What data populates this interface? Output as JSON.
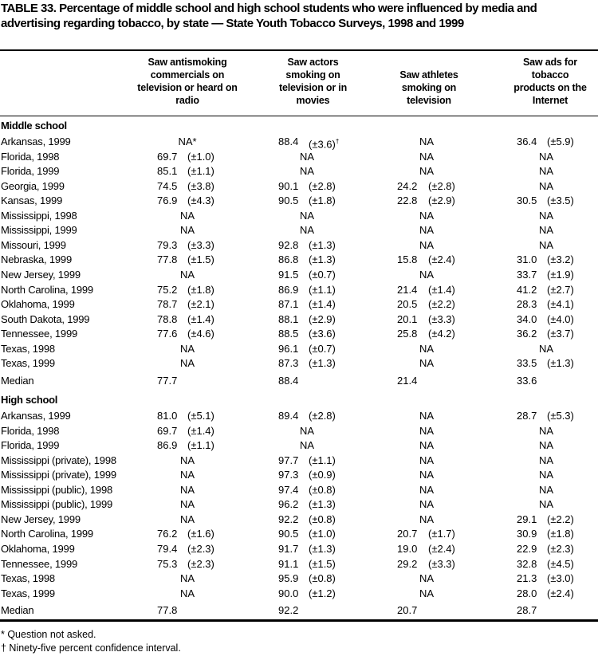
{
  "title": "TABLE 33. Percentage of middle school and high school students who were influenced by media and advertising regarding tobacco, by state — State Youth Tobacco Surveys, 1998 and 1999",
  "columns": [
    "Saw antismoking commercials on television or heard on radio",
    "Saw actors smoking on television or in movies",
    "Saw athletes smoking on television",
    "Saw ads for tobacco products on the Internet"
  ],
  "sections": [
    {
      "heading": "Middle school",
      "rows": [
        {
          "label": "Arkansas, 1999",
          "cells": [
            [
              "NA*"
            ],
            [
              "88.4",
              "(±3.6)",
              "†"
            ],
            [
              "NA"
            ],
            [
              "36.4",
              "(±5.9)"
            ]
          ]
        },
        {
          "label": "Florida, 1998",
          "cells": [
            [
              "69.7",
              "(±1.0)"
            ],
            [
              "NA"
            ],
            [
              "NA"
            ],
            [
              "NA"
            ]
          ]
        },
        {
          "label": "Florida, 1999",
          "cells": [
            [
              "85.1",
              "(±1.1)"
            ],
            [
              "NA"
            ],
            [
              "NA"
            ],
            [
              "NA"
            ]
          ]
        },
        {
          "label": "Georgia, 1999",
          "cells": [
            [
              "74.5",
              "(±3.8)"
            ],
            [
              "90.1",
              "(±2.8)"
            ],
            [
              "24.2",
              "(±2.8)"
            ],
            [
              "NA"
            ]
          ]
        },
        {
          "label": "Kansas, 1999",
          "cells": [
            [
              "76.9",
              "(±4.3)"
            ],
            [
              "90.5",
              "(±1.8)"
            ],
            [
              "22.8",
              "(±2.9)"
            ],
            [
              "30.5",
              "(±3.5)"
            ]
          ]
        },
        {
          "label": "Mississippi, 1998",
          "cells": [
            [
              "NA"
            ],
            [
              "NA"
            ],
            [
              "NA"
            ],
            [
              "NA"
            ]
          ]
        },
        {
          "label": "Mississippi, 1999",
          "cells": [
            [
              "NA"
            ],
            [
              "NA"
            ],
            [
              "NA"
            ],
            [
              "NA"
            ]
          ]
        },
        {
          "label": "Missouri, 1999",
          "cells": [
            [
              "79.3",
              "(±3.3)"
            ],
            [
              "92.8",
              "(±1.3)"
            ],
            [
              "NA"
            ],
            [
              "NA"
            ]
          ]
        },
        {
          "label": "Nebraska, 1999",
          "cells": [
            [
              "77.8",
              "(±1.5)"
            ],
            [
              "86.8",
              "(±1.3)"
            ],
            [
              "15.8",
              "(±2.4)"
            ],
            [
              "31.0",
              "(±3.2)"
            ]
          ]
        },
        {
          "label": "New Jersey, 1999",
          "cells": [
            [
              "NA"
            ],
            [
              "91.5",
              "(±0.7)"
            ],
            [
              "NA"
            ],
            [
              "33.7",
              "(±1.9)"
            ]
          ]
        },
        {
          "label": "North Carolina, 1999",
          "cells": [
            [
              "75.2",
              "(±1.8)"
            ],
            [
              "86.9",
              "(±1.1)"
            ],
            [
              "21.4",
              "(±1.4)"
            ],
            [
              "41.2",
              "(±2.7)"
            ]
          ]
        },
        {
          "label": "Oklahoma, 1999",
          "cells": [
            [
              "78.7",
              "(±2.1)"
            ],
            [
              "87.1",
              "(±1.4)"
            ],
            [
              "20.5",
              "(±2.2)"
            ],
            [
              "28.3",
              "(±4.1)"
            ]
          ]
        },
        {
          "label": "South Dakota, 1999",
          "cells": [
            [
              "78.8",
              "(±1.4)"
            ],
            [
              "88.1",
              "(±2.9)"
            ],
            [
              "20.1",
              "(±3.3)"
            ],
            [
              "34.0",
              "(±4.0)"
            ]
          ]
        },
        {
          "label": "Tennessee, 1999",
          "cells": [
            [
              "77.6",
              "(±4.6)"
            ],
            [
              "88.5",
              "(±3.6)"
            ],
            [
              "25.8",
              "(±4.2)"
            ],
            [
              "36.2",
              "(±3.7)"
            ]
          ]
        },
        {
          "label": "Texas, 1998",
          "cells": [
            [
              "NA"
            ],
            [
              "96.1",
              "(±0.7)"
            ],
            [
              "NA"
            ],
            [
              "NA"
            ]
          ]
        },
        {
          "label": "Texas, 1999",
          "cells": [
            [
              "NA"
            ],
            [
              "87.3",
              "(±1.3)"
            ],
            [
              "NA"
            ],
            [
              "33.5",
              "(±1.3)"
            ]
          ]
        },
        {
          "label": "Median",
          "median": true,
          "cells": [
            [
              "77.7"
            ],
            [
              "88.4"
            ],
            [
              "21.4"
            ],
            [
              "33.6"
            ]
          ]
        }
      ]
    },
    {
      "heading": "High school",
      "rows": [
        {
          "label": "Arkansas, 1999",
          "cells": [
            [
              "81.0",
              "(±5.1)"
            ],
            [
              "89.4",
              "(±2.8)"
            ],
            [
              "NA"
            ],
            [
              "28.7",
              "(±5.3)"
            ]
          ]
        },
        {
          "label": "Florida, 1998",
          "cells": [
            [
              "69.7",
              "(±1.4)"
            ],
            [
              "NA"
            ],
            [
              "NA"
            ],
            [
              "NA"
            ]
          ]
        },
        {
          "label": "Florida, 1999",
          "cells": [
            [
              "86.9",
              "(±1.1)"
            ],
            [
              "NA"
            ],
            [
              "NA"
            ],
            [
              "NA"
            ]
          ]
        },
        {
          "label": "Mississippi (private), 1998",
          "cells": [
            [
              "NA"
            ],
            [
              "97.7",
              "(±1.1)"
            ],
            [
              "NA"
            ],
            [
              "NA"
            ]
          ]
        },
        {
          "label": "Mississippi (private), 1999",
          "cells": [
            [
              "NA"
            ],
            [
              "97.3",
              "(±0.9)"
            ],
            [
              "NA"
            ],
            [
              "NA"
            ]
          ]
        },
        {
          "label": "Mississippi (public), 1998",
          "cells": [
            [
              "NA"
            ],
            [
              "97.4",
              "(±0.8)"
            ],
            [
              "NA"
            ],
            [
              "NA"
            ]
          ]
        },
        {
          "label": "Mississippi (public), 1999",
          "cells": [
            [
              "NA"
            ],
            [
              "96.2",
              "(±1.3)"
            ],
            [
              "NA"
            ],
            [
              "NA"
            ]
          ]
        },
        {
          "label": "New Jersey, 1999",
          "cells": [
            [
              "NA"
            ],
            [
              "92.2",
              "(±0.8)"
            ],
            [
              "NA"
            ],
            [
              "29.1",
              "(±2.2)"
            ]
          ]
        },
        {
          "label": "North Carolina, 1999",
          "cells": [
            [
              "76.2",
              "(±1.6)"
            ],
            [
              "90.5",
              "(±1.0)"
            ],
            [
              "20.7",
              "(±1.7)"
            ],
            [
              "30.9",
              "(±1.8)"
            ]
          ]
        },
        {
          "label": "Oklahoma, 1999",
          "cells": [
            [
              "79.4",
              "(±2.3)"
            ],
            [
              "91.7",
              "(±1.3)"
            ],
            [
              "19.0",
              "(±2.4)"
            ],
            [
              "22.9",
              "(±2.3)"
            ]
          ]
        },
        {
          "label": "Tennessee, 1999",
          "cells": [
            [
              "75.3",
              "(±2.3)"
            ],
            [
              "91.1",
              "(±1.5)"
            ],
            [
              "29.2",
              "(±3.3)"
            ],
            [
              "32.8",
              "(±4.5)"
            ]
          ]
        },
        {
          "label": "Texas, 1998",
          "cells": [
            [
              "NA"
            ],
            [
              "95.9",
              "(±0.8)"
            ],
            [
              "NA"
            ],
            [
              "21.3",
              "(±3.0)"
            ]
          ]
        },
        {
          "label": "Texas, 1999",
          "cells": [
            [
              "NA"
            ],
            [
              "90.0",
              "(±1.2)"
            ],
            [
              "NA"
            ],
            [
              "28.0",
              "(±2.4)"
            ]
          ]
        },
        {
          "label": "Median",
          "median": true,
          "cells": [
            [
              "77.8"
            ],
            [
              "92.2"
            ],
            [
              "20.7"
            ],
            [
              "28.7"
            ]
          ]
        }
      ]
    }
  ],
  "footnotes": [
    "* Question not asked.",
    "† Ninety-five percent confidence interval."
  ]
}
